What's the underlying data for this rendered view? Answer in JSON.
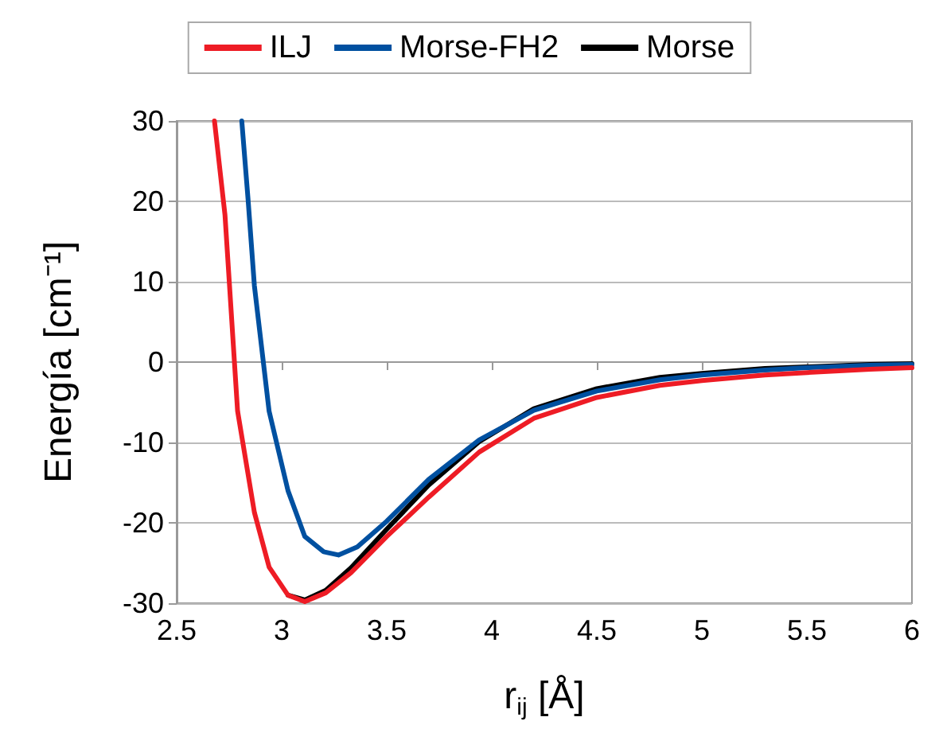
{
  "chart_data": {
    "type": "line",
    "xlabel": "r$_{ij}$ [Å]",
    "ylabel": "Energía [cm⁻¹]",
    "xlim": [
      2.5,
      6
    ],
    "xticks": [
      2.5,
      3,
      3.5,
      4,
      4.5,
      5,
      5.5,
      6
    ],
    "ylim": [
      -30,
      30
    ],
    "yticks": [
      -30,
      -20,
      -10,
      0,
      10,
      20,
      30
    ],
    "grid": "y",
    "legend": "top",
    "marker": "none",
    "line_style": "solid",
    "series": [
      {
        "name": "ILJ",
        "color": "#ee1c25",
        "x": [
          2.68,
          2.73,
          2.79,
          2.87,
          2.94,
          3.03,
          3.11,
          3.21,
          3.33,
          3.5,
          3.7,
          3.94,
          4.2,
          4.5,
          4.8,
          5,
          5.3,
          5.5,
          5.8,
          6
        ],
        "values": [
          30,
          18.3,
          -6.1,
          -18.7,
          -25.5,
          -29,
          -29.8,
          -28.7,
          -26.2,
          -21.7,
          -16.8,
          -11.2,
          -7,
          -4.4,
          -2.9,
          -2.3,
          -1.6,
          -1.3,
          -0.9,
          -0.7
        ]
      },
      {
        "name": "Morse-FH2",
        "color": "#0050a0",
        "x": [
          2.81,
          2.84,
          2.87,
          2.94,
          3.03,
          3.11,
          3.2,
          3.27,
          3.36,
          3.5,
          3.7,
          3.94,
          4.2,
          4.5,
          4.8,
          5,
          5.3,
          5.5,
          5.8,
          6
        ],
        "values": [
          30,
          20.2,
          9.5,
          -6.1,
          -16,
          -21.7,
          -23.6,
          -24,
          -23,
          -19.8,
          -14.6,
          -9.7,
          -6,
          -3.6,
          -2.2,
          -1.6,
          -1,
          -0.7,
          -0.4,
          -0.3
        ]
      },
      {
        "name": "Morse",
        "color": "#000000",
        "x": [
          3.03,
          3.11,
          3.21,
          3.33,
          3.5,
          3.7,
          3.94,
          4.2,
          4.5,
          4.8,
          5,
          5.3,
          5.5,
          5.8,
          6
        ],
        "values": [
          -29,
          -29.6,
          -28.4,
          -25.6,
          -20.8,
          -15.3,
          -9.9,
          -5.8,
          -3.3,
          -1.9,
          -1.4,
          -0.8,
          -0.6,
          -0.3,
          -0.2
        ]
      }
    ]
  }
}
